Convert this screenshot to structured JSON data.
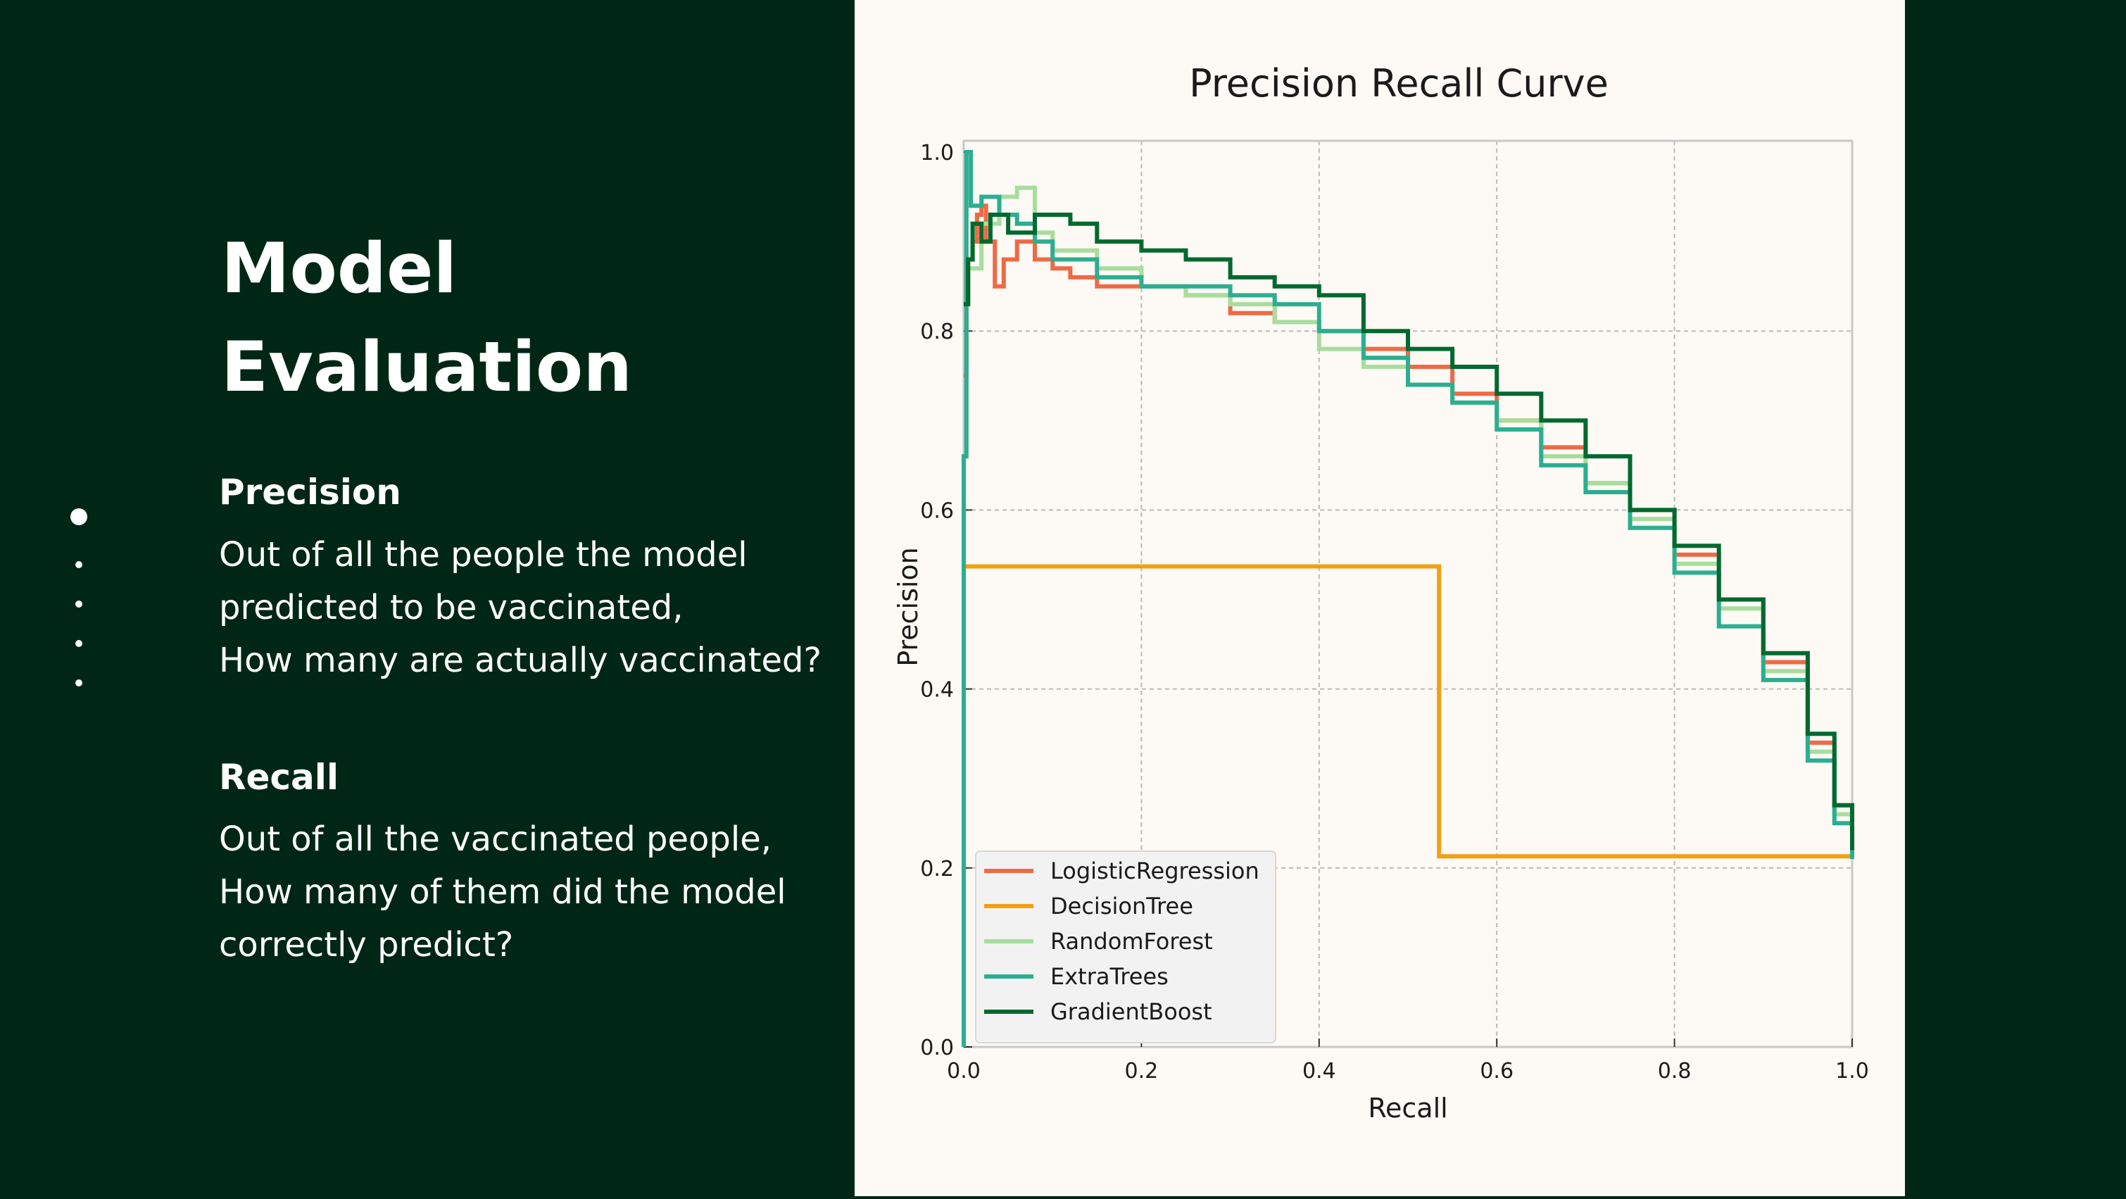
{
  "slide": {
    "title_line1": "Model",
    "title_line2": "Evaluation",
    "nav_dots": 5,
    "active_dot": 0,
    "precision_heading": "Precision",
    "precision_lines": [
      "Out of all the people the model",
      "predicted to be vaccinated,",
      "How many are actually vaccinated?"
    ],
    "recall_heading": "Recall",
    "recall_lines": [
      "Out of all the vaccinated people,",
      "How many of them did the model",
      "correctly predict?"
    ]
  },
  "colors": {
    "background": "#002715",
    "chart_background": "#fdf9f4",
    "text": "#ffffff"
  },
  "chart_data": {
    "type": "line",
    "title": "Precision Recall Curve",
    "xlabel": "Recall",
    "ylabel": "Precision",
    "xlim": [
      0,
      1
    ],
    "ylim": [
      0,
      1
    ],
    "xticks": [
      "0.0",
      "0.2",
      "0.4",
      "0.6",
      "0.8",
      "1.0"
    ],
    "yticks": [
      "0.0",
      "0.2",
      "0.4",
      "0.6",
      "0.8",
      "1.0"
    ],
    "grid": true,
    "legend_position": "lower-left",
    "series": [
      {
        "name": "LogisticRegression",
        "color": "#ee6a46",
        "step": true,
        "points": [
          [
            0.0,
            0.75
          ],
          [
            0.003,
            0.88
          ],
          [
            0.01,
            0.9
          ],
          [
            0.015,
            0.93
          ],
          [
            0.02,
            0.94
          ],
          [
            0.025,
            0.9
          ],
          [
            0.035,
            0.85
          ],
          [
            0.045,
            0.88
          ],
          [
            0.06,
            0.9
          ],
          [
            0.08,
            0.88
          ],
          [
            0.1,
            0.87
          ],
          [
            0.12,
            0.86
          ],
          [
            0.15,
            0.85
          ],
          [
            0.2,
            0.85
          ],
          [
            0.25,
            0.84
          ],
          [
            0.3,
            0.82
          ],
          [
            0.35,
            0.81
          ],
          [
            0.4,
            0.8
          ],
          [
            0.45,
            0.78
          ],
          [
            0.5,
            0.76
          ],
          [
            0.55,
            0.73
          ],
          [
            0.6,
            0.7
          ],
          [
            0.65,
            0.67
          ],
          [
            0.7,
            0.63
          ],
          [
            0.75,
            0.6
          ],
          [
            0.8,
            0.55
          ],
          [
            0.85,
            0.5
          ],
          [
            0.9,
            0.43
          ],
          [
            0.95,
            0.34
          ],
          [
            0.98,
            0.27
          ],
          [
            1.0,
            0.22
          ]
        ]
      },
      {
        "name": "DecisionTree",
        "color": "#f0a013",
        "step": false,
        "points": [
          [
            0.0,
            0.0
          ],
          [
            0.0,
            0.537
          ],
          [
            0.535,
            0.537
          ],
          [
            0.535,
            0.213
          ],
          [
            1.0,
            0.213
          ]
        ]
      },
      {
        "name": "RandomForest",
        "color": "#a8dd9d",
        "step": true,
        "points": [
          [
            0.0,
            0.87
          ],
          [
            0.02,
            0.92
          ],
          [
            0.04,
            0.95
          ],
          [
            0.06,
            0.96
          ],
          [
            0.08,
            0.91
          ],
          [
            0.1,
            0.89
          ],
          [
            0.15,
            0.87
          ],
          [
            0.2,
            0.85
          ],
          [
            0.25,
            0.84
          ],
          [
            0.3,
            0.83
          ],
          [
            0.35,
            0.81
          ],
          [
            0.4,
            0.78
          ],
          [
            0.45,
            0.76
          ],
          [
            0.5,
            0.74
          ],
          [
            0.55,
            0.72
          ],
          [
            0.6,
            0.7
          ],
          [
            0.65,
            0.66
          ],
          [
            0.7,
            0.63
          ],
          [
            0.75,
            0.59
          ],
          [
            0.8,
            0.54
          ],
          [
            0.85,
            0.49
          ],
          [
            0.9,
            0.42
          ],
          [
            0.95,
            0.33
          ],
          [
            0.98,
            0.26
          ],
          [
            1.0,
            0.22
          ]
        ]
      },
      {
        "name": "ExtraTrees",
        "color": "#2cae90",
        "step": true,
        "points": [
          [
            0.0,
            0.0
          ],
          [
            0.0,
            0.66
          ],
          [
            0.003,
            1.0
          ],
          [
            0.008,
            0.94
          ],
          [
            0.02,
            0.95
          ],
          [
            0.04,
            0.93
          ],
          [
            0.06,
            0.92
          ],
          [
            0.08,
            0.9
          ],
          [
            0.1,
            0.88
          ],
          [
            0.15,
            0.86
          ],
          [
            0.2,
            0.85
          ],
          [
            0.25,
            0.85
          ],
          [
            0.3,
            0.84
          ],
          [
            0.35,
            0.83
          ],
          [
            0.4,
            0.8
          ],
          [
            0.45,
            0.77
          ],
          [
            0.5,
            0.74
          ],
          [
            0.55,
            0.72
          ],
          [
            0.6,
            0.69
          ],
          [
            0.65,
            0.65
          ],
          [
            0.7,
            0.62
          ],
          [
            0.75,
            0.58
          ],
          [
            0.8,
            0.53
          ],
          [
            0.85,
            0.47
          ],
          [
            0.9,
            0.41
          ],
          [
            0.95,
            0.32
          ],
          [
            0.98,
            0.25
          ],
          [
            1.0,
            0.21
          ]
        ]
      },
      {
        "name": "GradientBoost",
        "color": "#00692f",
        "step": true,
        "points": [
          [
            0.0,
            0.83
          ],
          [
            0.005,
            0.88
          ],
          [
            0.01,
            0.92
          ],
          [
            0.02,
            0.9
          ],
          [
            0.03,
            0.93
          ],
          [
            0.05,
            0.91
          ],
          [
            0.08,
            0.93
          ],
          [
            0.12,
            0.92
          ],
          [
            0.15,
            0.9
          ],
          [
            0.2,
            0.89
          ],
          [
            0.25,
            0.88
          ],
          [
            0.3,
            0.86
          ],
          [
            0.35,
            0.85
          ],
          [
            0.4,
            0.84
          ],
          [
            0.45,
            0.8
          ],
          [
            0.5,
            0.78
          ],
          [
            0.55,
            0.76
          ],
          [
            0.6,
            0.73
          ],
          [
            0.65,
            0.7
          ],
          [
            0.7,
            0.66
          ],
          [
            0.75,
            0.6
          ],
          [
            0.8,
            0.56
          ],
          [
            0.85,
            0.5
          ],
          [
            0.9,
            0.44
          ],
          [
            0.95,
            0.35
          ],
          [
            0.98,
            0.27
          ],
          [
            1.0,
            0.22
          ]
        ]
      }
    ]
  }
}
